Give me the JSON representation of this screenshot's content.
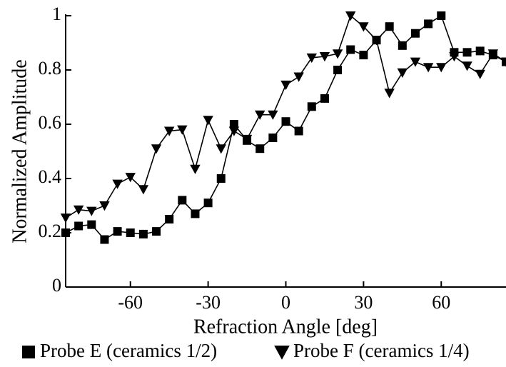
{
  "chart_data": {
    "type": "line",
    "x_label": "Refraction Angle [deg]",
    "y_label": "Normalized Amplitude",
    "x": [
      -85,
      -80,
      -75,
      -70,
      -65,
      -60,
      -55,
      -50,
      -45,
      -40,
      -35,
      -30,
      -25,
      -20,
      -15,
      -10,
      -5,
      0,
      5,
      10,
      15,
      20,
      25,
      30,
      35,
      40,
      45,
      50,
      55,
      60,
      65,
      70,
      75,
      80,
      85
    ],
    "series": [
      {
        "name": "Probe E (ceramics 1/2)",
        "color": "#000000",
        "marker": "square",
        "values": [
          0.2,
          0.225,
          0.23,
          0.175,
          0.205,
          0.2,
          0.195,
          0.205,
          0.25,
          0.32,
          0.27,
          0.31,
          0.4,
          0.6,
          0.54,
          0.51,
          0.55,
          0.61,
          0.575,
          0.665,
          0.695,
          0.8,
          0.875,
          0.855,
          0.91,
          0.96,
          0.89,
          0.935,
          0.97,
          1.0,
          0.865,
          0.865,
          0.87,
          0.855,
          0.83
        ]
      },
      {
        "name": "Probe F (ceramics 1/4)",
        "color": "#000000",
        "marker": "triangle-down",
        "values": [
          0.255,
          0.285,
          0.28,
          0.3,
          0.38,
          0.405,
          0.36,
          0.51,
          0.575,
          0.58,
          0.435,
          0.615,
          0.51,
          0.575,
          0.545,
          0.635,
          0.635,
          0.745,
          0.775,
          0.845,
          0.85,
          0.86,
          1.0,
          0.96,
          0.91,
          0.715,
          0.79,
          0.83,
          0.81,
          0.81,
          0.85,
          0.815,
          0.785,
          0.86,
          0.83
        ]
      }
    ],
    "xlim": [
      -85,
      85
    ],
    "xticks": [
      -60,
      -30,
      0,
      30,
      60
    ],
    "ylim": [
      0,
      1
    ],
    "yticks": [
      0,
      0.2,
      0.4,
      0.6,
      0.8,
      1
    ],
    "legend": "bottom",
    "grid": false
  }
}
